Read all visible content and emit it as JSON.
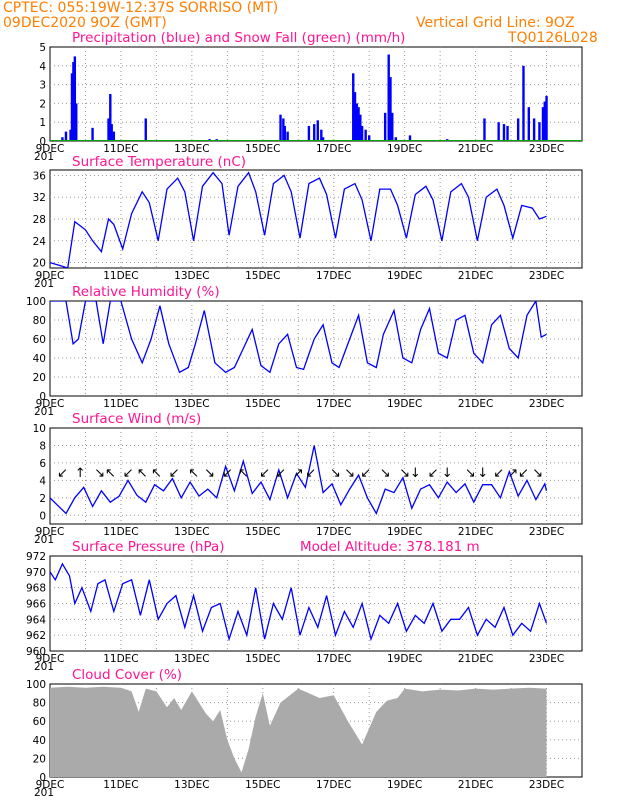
{
  "header": {
    "line1": "CPTEC:   055:19W-12:37S   SORRISO (MT)",
    "line2": "09DEC2020 9OZ (GMT)",
    "grid_note": "Vertical Grid Line: 9OZ",
    "model_code": "TQ0126L028",
    "accent_color": "#ff7f00",
    "title_color": "#ff1493"
  },
  "x_axis": {
    "labels": [
      "9DEC",
      "11DEC",
      "13DEC",
      "15DEC",
      "17DEC",
      "19DEC",
      "21DEC",
      "23DEC"
    ],
    "clipped_label": "201",
    "days": 15
  },
  "chart_data": [
    {
      "type": "bar",
      "id": "precip",
      "title": "Precipitation (blue) and Snow Fall (green) (mm/h)",
      "ylim": [
        0,
        5
      ],
      "yticks": [
        "0",
        "1",
        "2",
        "3",
        "4",
        "5"
      ],
      "series": [
        {
          "name": "blue",
          "color": "#0000ff",
          "x_day": [
            0.35,
            0.45,
            0.58,
            0.62,
            0.66,
            0.7,
            0.74,
            1.2,
            1.65,
            1.7,
            1.74,
            1.8,
            2.7,
            4.5,
            4.7,
            6.5,
            6.58,
            6.62,
            6.7,
            7.3,
            7.45,
            7.55,
            7.65,
            7.7,
            8.55,
            8.6,
            8.65,
            8.7,
            8.75,
            8.8,
            8.9,
            9.0,
            9.45,
            9.55,
            9.6,
            9.65,
            9.75,
            10.15,
            11.2,
            12.25,
            12.65,
            12.8,
            12.9,
            13.2,
            13.35,
            13.5,
            13.65,
            13.8,
            13.9,
            13.95,
            14.0
          ],
          "values": [
            0.2,
            0.5,
            0.6,
            3.6,
            4.2,
            4.5,
            2.0,
            0.7,
            1.2,
            2.5,
            0.9,
            0.5,
            1.2,
            0.1,
            0.1,
            1.4,
            1.2,
            0.8,
            0.5,
            0.8,
            0.9,
            1.1,
            0.6,
            0.2,
            3.6,
            2.6,
            2.0,
            1.8,
            1.4,
            0.8,
            0.6,
            0.3,
            1.5,
            4.6,
            3.4,
            1.5,
            0.2,
            0.3,
            0.1,
            1.2,
            1.0,
            0.9,
            0.8,
            1.2,
            4.0,
            1.8,
            1.2,
            1.0,
            1.8,
            2.1,
            2.4
          ]
        },
        {
          "name": "green",
          "color": "#00aa00",
          "x_day": [],
          "values": []
        }
      ]
    },
    {
      "type": "line",
      "id": "temp",
      "title": "Surface Temperature (nC)",
      "ylim": [
        19,
        37
      ],
      "yticks": [
        "20",
        "24",
        "28",
        "32",
        "36"
      ],
      "series": [
        {
          "name": "",
          "color": "#0000ff",
          "x_day": [
            0,
            0.25,
            0.5,
            0.7,
            0.8,
            1.0,
            1.2,
            1.45,
            1.65,
            1.8,
            2.05,
            2.3,
            2.6,
            2.8,
            3.05,
            3.3,
            3.6,
            3.8,
            4.05,
            4.3,
            4.6,
            4.85,
            5.05,
            5.3,
            5.6,
            5.8,
            6.05,
            6.3,
            6.6,
            6.8,
            7.05,
            7.3,
            7.6,
            7.8,
            8.05,
            8.3,
            8.6,
            8.8,
            9.05,
            9.3,
            9.6,
            9.8,
            10.05,
            10.3,
            10.6,
            10.8,
            11.05,
            11.3,
            11.6,
            11.8,
            12.05,
            12.3,
            12.6,
            12.8,
            13.05,
            13.3,
            13.6,
            13.8,
            14.0
          ],
          "values": [
            20,
            19.5,
            19,
            27.5,
            27,
            26,
            24,
            22,
            28,
            27,
            22.5,
            29,
            33,
            31,
            24,
            33.5,
            35.5,
            33,
            24,
            34,
            36.5,
            34.5,
            25,
            34,
            36.5,
            33,
            25,
            34.5,
            36,
            33,
            24.5,
            34.5,
            35.5,
            32.5,
            24.5,
            33.5,
            34.5,
            31.5,
            24,
            33.5,
            33.5,
            30.5,
            24.5,
            32.5,
            34,
            31.5,
            24,
            33,
            34.5,
            32,
            24,
            32,
            33.5,
            30.5,
            24.5,
            30.5,
            30,
            28,
            28.5
          ]
        }
      ]
    },
    {
      "type": "line",
      "id": "rh",
      "title": "Relative Humidity (%)",
      "ylim": [
        0,
        100
      ],
      "yticks": [
        "0",
        "20",
        "40",
        "60",
        "80",
        "100"
      ],
      "series": [
        {
          "name": "",
          "color": "#0000ff",
          "x_day": [
            0,
            0.2,
            0.45,
            0.65,
            0.8,
            1.0,
            1.3,
            1.5,
            1.7,
            2.0,
            2.3,
            2.6,
            2.85,
            3.1,
            3.35,
            3.65,
            3.9,
            4.1,
            4.35,
            4.65,
            4.95,
            5.2,
            5.45,
            5.7,
            5.95,
            6.2,
            6.45,
            6.7,
            6.95,
            7.15,
            7.45,
            7.7,
            7.95,
            8.15,
            8.45,
            8.7,
            8.95,
            9.2,
            9.4,
            9.7,
            9.95,
            10.2,
            10.45,
            10.7,
            10.95,
            11.2,
            11.45,
            11.7,
            11.95,
            12.2,
            12.45,
            12.7,
            12.95,
            13.2,
            13.45,
            13.7,
            13.85,
            14.0
          ],
          "values": [
            100,
            100,
            100,
            55,
            60,
            100,
            100,
            55,
            100,
            100,
            60,
            35,
            60,
            95,
            55,
            25,
            30,
            55,
            90,
            35,
            25,
            30,
            50,
            70,
            32,
            25,
            55,
            65,
            30,
            28,
            60,
            75,
            35,
            30,
            60,
            85,
            35,
            30,
            65,
            90,
            40,
            35,
            70,
            92,
            45,
            40,
            80,
            85,
            45,
            35,
            75,
            85,
            50,
            40,
            85,
            100,
            62,
            65
          ]
        }
      ]
    },
    {
      "type": "line",
      "id": "wind",
      "title": "Surface Wind (m/s)",
      "ylim": [
        -1,
        10
      ],
      "yticks": [
        "0",
        "2",
        "4",
        "6",
        "8",
        "10"
      ],
      "series": [
        {
          "name": "",
          "color": "#0000ff",
          "x_day": [
            0,
            0.2,
            0.45,
            0.7,
            0.95,
            1.2,
            1.45,
            1.7,
            1.95,
            2.2,
            2.45,
            2.7,
            2.95,
            3.2,
            3.45,
            3.7,
            3.95,
            4.2,
            4.45,
            4.7,
            4.95,
            5.2,
            5.45,
            5.7,
            5.95,
            6.2,
            6.45,
            6.7,
            6.95,
            7.2,
            7.45,
            7.7,
            7.95,
            8.2,
            8.45,
            8.7,
            8.95,
            9.2,
            9.45,
            9.7,
            9.95,
            10.2,
            10.45,
            10.7,
            10.95,
            11.2,
            11.45,
            11.7,
            11.95,
            12.2,
            12.45,
            12.7,
            12.95,
            13.2,
            13.45,
            13.7,
            13.95,
            14.0
          ],
          "values": [
            2,
            1.2,
            0.2,
            2.0,
            3.2,
            1.0,
            2.8,
            1.5,
            2.2,
            4.0,
            2.3,
            1.5,
            3.5,
            2.8,
            4.2,
            2.0,
            3.8,
            2.2,
            3.0,
            2.0,
            5.6,
            2.8,
            6.2,
            2.5,
            3.8,
            1.8,
            5.2,
            2.0,
            4.8,
            3.2,
            8.0,
            2.6,
            3.6,
            1.2,
            3.0,
            4.6,
            2.0,
            0.2,
            3.0,
            2.6,
            4.3,
            0.8,
            3.0,
            3.5,
            2.0,
            3.8,
            2.6,
            3.6,
            1.5,
            3.5,
            3.5,
            2.0,
            5.0,
            2.2,
            4.0,
            1.8,
            3.6,
            2.8
          ]
        }
      ],
      "arrows": [
        {
          "day": 0.35,
          "dir": "↙"
        },
        {
          "day": 0.85,
          "dir": "↑"
        },
        {
          "day": 1.4,
          "dir": "↘"
        },
        {
          "day": 1.7,
          "dir": "↖"
        },
        {
          "day": 2.2,
          "dir": "↙"
        },
        {
          "day": 2.6,
          "dir": "↖"
        },
        {
          "day": 3.0,
          "dir": "↖"
        },
        {
          "day": 3.5,
          "dir": "↙"
        },
        {
          "day": 4.05,
          "dir": "↖"
        },
        {
          "day": 4.5,
          "dir": "↘"
        },
        {
          "day": 5.0,
          "dir": "↙"
        },
        {
          "day": 5.45,
          "dir": "↖"
        },
        {
          "day": 6.05,
          "dir": "↙"
        },
        {
          "day": 6.5,
          "dir": "↙"
        },
        {
          "day": 7.0,
          "dir": "↗"
        },
        {
          "day": 7.35,
          "dir": "↙"
        },
        {
          "day": 8.05,
          "dir": "↘"
        },
        {
          "day": 8.45,
          "dir": "↘"
        },
        {
          "day": 8.9,
          "dir": "↙"
        },
        {
          "day": 9.45,
          "dir": "↘"
        },
        {
          "day": 10.0,
          "dir": "↘"
        },
        {
          "day": 10.3,
          "dir": "↓"
        },
        {
          "day": 10.8,
          "dir": "↙"
        },
        {
          "day": 11.2,
          "dir": "↓"
        },
        {
          "day": 11.85,
          "dir": "↘"
        },
        {
          "day": 12.2,
          "dir": "↓"
        },
        {
          "day": 12.65,
          "dir": "↙"
        },
        {
          "day": 13.05,
          "dir": "↗"
        },
        {
          "day": 13.35,
          "dir": "↙"
        },
        {
          "day": 13.75,
          "dir": "↘"
        }
      ]
    },
    {
      "type": "line",
      "id": "pres",
      "title": "Surface Pressure (hPa)",
      "annotation": "Model Altitude: 378.181 m",
      "ylim": [
        960,
        972
      ],
      "yticks": [
        "960",
        "962",
        "964",
        "966",
        "968",
        "970",
        "972"
      ],
      "series": [
        {
          "name": "",
          "color": "#0000ff",
          "x_day": [
            0,
            0.15,
            0.35,
            0.55,
            0.7,
            0.9,
            1.15,
            1.35,
            1.55,
            1.8,
            2.05,
            2.3,
            2.55,
            2.8,
            3.05,
            3.3,
            3.55,
            3.8,
            4.05,
            4.3,
            4.55,
            4.8,
            5.05,
            5.3,
            5.55,
            5.8,
            6.05,
            6.3,
            6.55,
            6.8,
            7.05,
            7.3,
            7.55,
            7.8,
            8.05,
            8.3,
            8.55,
            8.8,
            9.05,
            9.3,
            9.55,
            9.8,
            10.05,
            10.3,
            10.55,
            10.8,
            11.05,
            11.3,
            11.55,
            11.8,
            12.05,
            12.3,
            12.55,
            12.8,
            13.05,
            13.3,
            13.55,
            13.8,
            14.0
          ],
          "values": [
            970,
            969,
            971,
            969.5,
            966,
            968,
            965,
            968.5,
            969,
            965,
            968.5,
            969,
            964.5,
            969,
            964,
            966,
            967,
            963,
            967,
            962.5,
            965.5,
            966,
            961.5,
            965,
            962,
            968,
            961.5,
            966,
            964,
            968,
            962,
            965.5,
            963,
            967,
            962,
            965,
            963,
            966,
            961.5,
            964.5,
            963.5,
            966,
            962.5,
            964.5,
            963.5,
            966,
            962.5,
            964,
            964,
            965.5,
            962,
            964,
            963,
            965.5,
            962,
            963.5,
            962.5,
            966,
            963.5
          ]
        }
      ]
    },
    {
      "type": "area",
      "id": "cloud",
      "title": "Cloud Cover (%)",
      "ylim": [
        0,
        100
      ],
      "yticks": [
        "0",
        "20",
        "40",
        "60",
        "80",
        "100"
      ],
      "series": [
        {
          "name": "",
          "color": "#aaaaaa",
          "x_day": [
            0,
            0.5,
            1.0,
            1.5,
            2.0,
            2.3,
            2.5,
            2.7,
            3.0,
            3.3,
            3.5,
            3.7,
            4.0,
            4.2,
            4.4,
            4.6,
            4.8,
            5.0,
            5.2,
            5.4,
            5.6,
            5.8,
            6.0,
            6.2,
            6.5,
            7.0,
            7.3,
            7.6,
            8.0,
            8.4,
            8.8,
            9.2,
            9.5,
            9.8,
            10.0,
            10.5,
            11.0,
            11.5,
            12.0,
            12.5,
            13.0,
            13.5,
            14.0
          ],
          "values": [
            96,
            97,
            96,
            97,
            96,
            92,
            70,
            95,
            92,
            75,
            85,
            72,
            92,
            80,
            68,
            60,
            72,
            40,
            20,
            5,
            30,
            65,
            90,
            55,
            80,
            95,
            90,
            85,
            88,
            60,
            35,
            70,
            82,
            85,
            95,
            92,
            94,
            93,
            95,
            94,
            95,
            96,
            95
          ]
        }
      ]
    }
  ]
}
